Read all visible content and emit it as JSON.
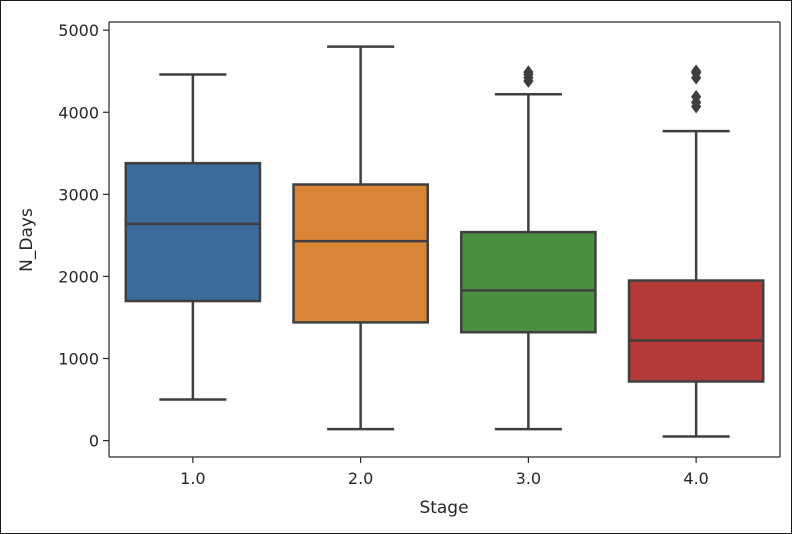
{
  "chart_data": {
    "type": "box",
    "xlabel": "Stage",
    "ylabel": "N_Days",
    "categories": [
      "1.0",
      "2.0",
      "3.0",
      "4.0"
    ],
    "ylim": [
      -200,
      5100
    ],
    "yticks": [
      0,
      1000,
      2000,
      3000,
      4000,
      5000
    ],
    "ytick_labels": [
      "0",
      "1000",
      "2000",
      "3000",
      "4000",
      "5000"
    ],
    "grid": false,
    "boxes": [
      {
        "category": "1.0",
        "whisker_low": 500,
        "q1": 1700,
        "median": 2640,
        "q3": 3380,
        "whisker_high": 4460,
        "outliers": [],
        "color": "#3a6b9a"
      },
      {
        "category": "2.0",
        "whisker_low": 140,
        "q1": 1440,
        "median": 2430,
        "q3": 3120,
        "whisker_high": 4800,
        "outliers": [],
        "color": "#d98535"
      },
      {
        "category": "3.0",
        "whisker_low": 140,
        "q1": 1320,
        "median": 1830,
        "q3": 2540,
        "whisker_high": 4220,
        "outliers": [
          4380,
          4420,
          4460,
          4490
        ],
        "color": "#4a8e3f"
      },
      {
        "category": "4.0",
        "whisker_low": 50,
        "q1": 720,
        "median": 1220,
        "q3": 1950,
        "whisker_high": 3770,
        "outliers": [
          4070,
          4120,
          4190,
          4420,
          4480,
          4500
        ],
        "color": "#b43a38"
      }
    ],
    "line_color": "#3f3f3f"
  }
}
